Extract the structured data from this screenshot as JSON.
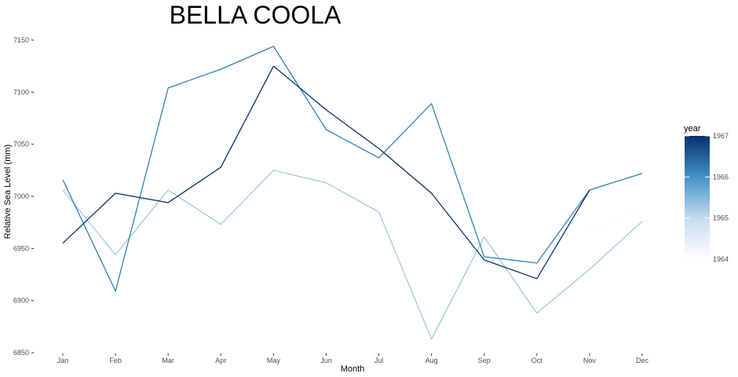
{
  "chart_data": {
    "type": "line",
    "title": "BELLA COOLA",
    "xlabel": "Month",
    "ylabel": "Relative Sea Level (mm)",
    "categories": [
      "Jan",
      "Feb",
      "Mar",
      "Apr",
      "May",
      "Jun",
      "Jul",
      "Aug",
      "Sep",
      "Oct",
      "Nov",
      "Dec"
    ],
    "ylim": [
      6850,
      7160
    ],
    "yticks": [
      6850,
      6900,
      6950,
      7000,
      7050,
      7100,
      7150
    ],
    "grid": false,
    "legend": {
      "title": "year",
      "position": "right",
      "type": "colorbar",
      "range": [
        1964,
        1967
      ],
      "ticks": [
        1964,
        1965,
        1966,
        1967
      ],
      "colors": [
        "#ffffff",
        "#c6dbef",
        "#4292c6",
        "#08306b"
      ]
    },
    "series": [
      {
        "year": 1964,
        "color": "#f7fbff",
        "values": [
          null,
          null,
          null,
          null,
          null,
          null,
          null,
          null,
          null,
          null,
          6966,
          6990
        ]
      },
      {
        "year": 1965,
        "color": "#9ecae1",
        "values": [
          7006,
          6944,
          7006,
          6973,
          7025,
          7013,
          6985,
          6863,
          6961,
          6888,
          6930,
          6976
        ]
      },
      {
        "year": 1966,
        "color": "#3182bd",
        "values": [
          7016,
          6909,
          7104,
          7122,
          7144,
          7064,
          7037,
          7089,
          6942,
          6936,
          7006,
          7022
        ]
      },
      {
        "year": 1967,
        "color": "#08306b",
        "values": [
          6955,
          7003,
          6994,
          7028,
          7125,
          7083,
          7046,
          7003,
          6939,
          6921,
          7006,
          null
        ]
      }
    ]
  }
}
